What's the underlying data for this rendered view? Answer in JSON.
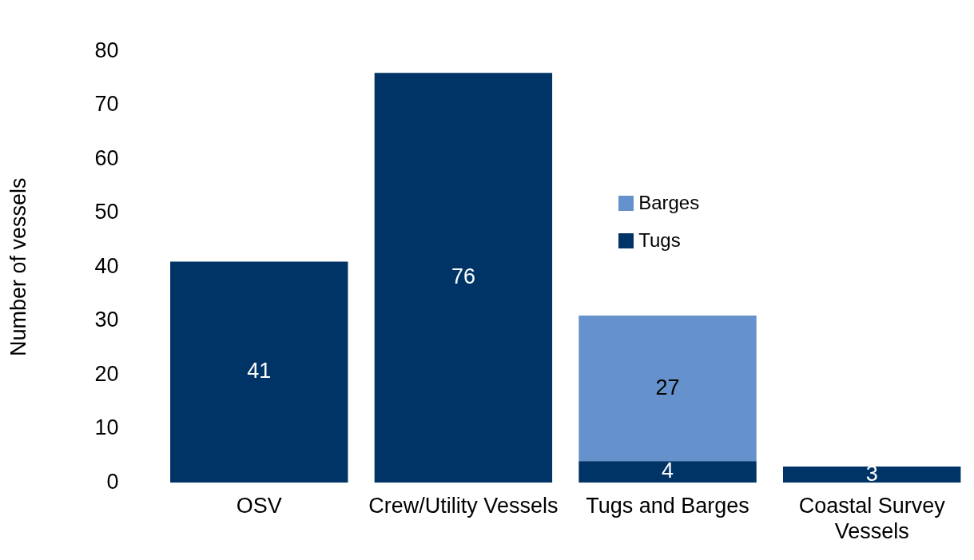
{
  "chart_data": {
    "type": "bar",
    "stacked": true,
    "ylabel": "Number of vessels",
    "categories": [
      "OSV",
      "Crew/Utility Vessels",
      "Tugs and Barges",
      "Coastal Survey Vessels"
    ],
    "series": [
      {
        "name": "Tugs",
        "color": "#003366",
        "values": [
          41,
          76,
          4,
          3
        ]
      },
      {
        "name": "Barges",
        "color": "#6592cc",
        "values": [
          null,
          null,
          27,
          null
        ]
      }
    ],
    "ylim": [
      0,
      80
    ],
    "yticks": [
      0,
      10,
      20,
      30,
      40,
      50,
      60,
      70,
      80
    ],
    "grid": false,
    "legend": "top right",
    "data_labels": true
  }
}
